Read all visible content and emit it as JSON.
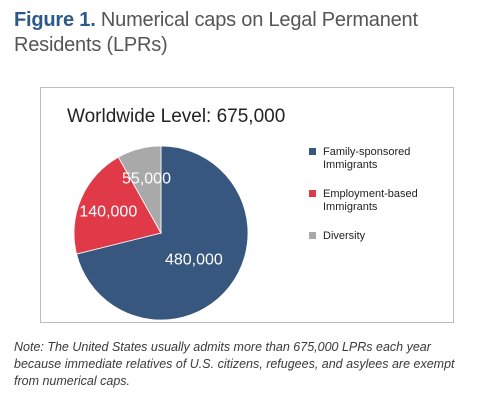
{
  "figure": {
    "number": "Figure 1.",
    "title": "Numerical caps on Legal Permanent Residents (LPRs)"
  },
  "note": "Note: The United States usually admits more than 675,000 LPRs each year because immediate relatives of U.S. citizens, refugees, and asylees are exempt from numerical caps.",
  "chart_data": {
    "type": "pie",
    "title": "Worldwide Level: 675,000",
    "legend_position": "right",
    "slices": [
      {
        "label": "Family-sponsored Immigrants",
        "legend_lines": [
          "Family-sponsored",
          "Immigrants"
        ],
        "value": 480000,
        "value_label": "480,000",
        "color": "#37577f"
      },
      {
        "label": "Employment-based Immigrants",
        "legend_lines": [
          "Employment-based",
          "Immigrants"
        ],
        "value": 140000,
        "value_label": "140,000",
        "color": "#e03a49"
      },
      {
        "label": "Diversity",
        "legend_lines": [
          "Diversity"
        ],
        "value": 55000,
        "value_label": "55,000",
        "color": "#a9a9a9"
      }
    ]
  }
}
